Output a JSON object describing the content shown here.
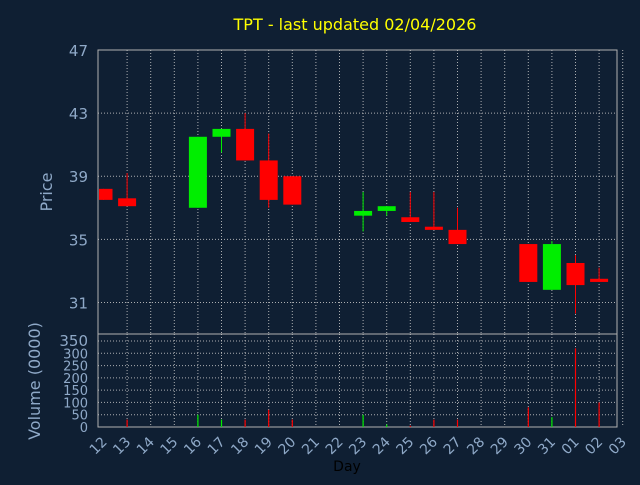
{
  "colors": {
    "background": "#0f1f33",
    "title": "#ffff00",
    "axis_text": "#8fa9c8",
    "up": "#00ee00",
    "down": "#ff0000",
    "grid": "#c8c8c8"
  },
  "chart_data": {
    "type": "candlestick",
    "title": "TPT - last updated 02/04/2026",
    "xlabel": "Day",
    "ylabel": "Price",
    "volume_label": "Volume (0000)",
    "x_ticks": [
      "12",
      "13",
      "14",
      "15",
      "16",
      "17",
      "18",
      "19",
      "20",
      "21",
      "22",
      "23",
      "24",
      "25",
      "26",
      "27",
      "28",
      "29",
      "30",
      "31",
      "01",
      "02",
      "03"
    ],
    "price_ylim": [
      29,
      47
    ],
    "price_ticks": [
      31,
      35,
      39,
      43,
      47
    ],
    "volume_ylim": [
      0,
      350
    ],
    "volume_ticks": [
      0,
      50,
      100,
      150,
      200,
      250,
      300,
      350
    ],
    "grid": true,
    "candles": [
      {
        "day": "12",
        "open": 38.2,
        "close": 37.5,
        "high": 38.2,
        "low": 37.5,
        "volume": 0
      },
      {
        "day": "13",
        "open": 37.6,
        "close": 37.1,
        "high": 39.2,
        "low": 37.1,
        "volume": 30
      },
      {
        "day": "16",
        "open": 37.0,
        "close": 41.5,
        "high": 41.5,
        "low": 37.0,
        "volume": 50
      },
      {
        "day": "17",
        "open": 41.5,
        "close": 42.0,
        "high": 42.0,
        "low": 40.5,
        "volume": 30
      },
      {
        "day": "18",
        "open": 42.0,
        "close": 40.0,
        "high": 43.0,
        "low": 40.0,
        "volume": 30
      },
      {
        "day": "19",
        "open": 40.0,
        "close": 37.5,
        "high": 41.7,
        "low": 37.0,
        "volume": 70
      },
      {
        "day": "20",
        "open": 39.0,
        "close": 37.2,
        "high": 39.0,
        "low": 37.2,
        "volume": 30
      },
      {
        "day": "23",
        "open": 36.5,
        "close": 36.8,
        "high": 38.0,
        "low": 35.5,
        "volume": 50
      },
      {
        "day": "24",
        "open": 36.8,
        "close": 37.1,
        "high": 37.1,
        "low": 36.5,
        "volume": 10
      },
      {
        "day": "25",
        "open": 36.4,
        "close": 36.1,
        "high": 38.0,
        "low": 36.1,
        "volume": 5
      },
      {
        "day": "26",
        "open": 35.8,
        "close": 35.6,
        "high": 38.0,
        "low": 35.6,
        "volume": 30
      },
      {
        "day": "27",
        "open": 35.6,
        "close": 34.7,
        "high": 37.0,
        "low": 34.7,
        "volume": 30
      },
      {
        "day": "30",
        "open": 34.7,
        "close": 32.3,
        "high": 34.7,
        "low": 32.3,
        "volume": 80
      },
      {
        "day": "31",
        "open": 31.8,
        "close": 34.7,
        "high": 34.9,
        "low": 31.8,
        "volume": 40
      },
      {
        "day": "01",
        "open": 33.5,
        "close": 32.1,
        "high": 34.0,
        "low": 30.3,
        "volume": 320
      },
      {
        "day": "02",
        "open": 32.5,
        "close": 32.3,
        "high": 33.2,
        "low": 32.3,
        "volume": 100
      }
    ]
  }
}
